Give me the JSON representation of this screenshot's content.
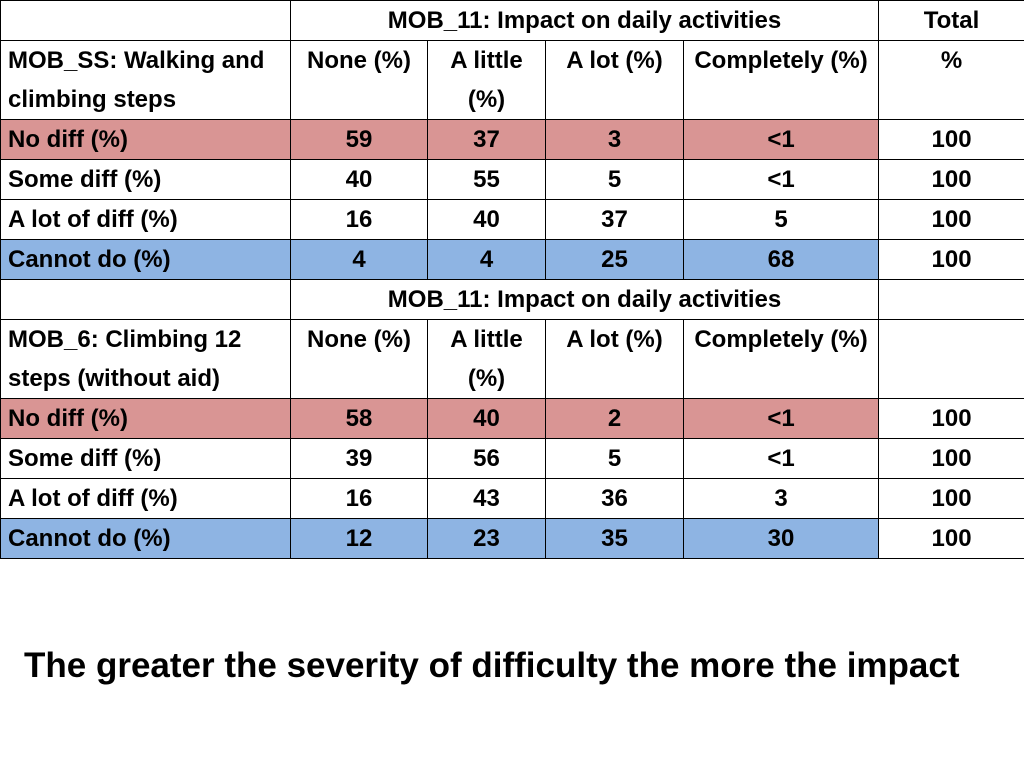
{
  "table1": {
    "title": "MOB_11: Impact on daily activities",
    "total_header": "Total",
    "row_header": "MOB_SS: Walking and climbing steps",
    "columns": [
      "None (%)",
      "A little (%)",
      "A lot (%)",
      "Completely (%)",
      "%"
    ],
    "rows": [
      {
        "label": "No diff (%)",
        "none": "59",
        "little": "37",
        "lot": "3",
        "completely": "<1",
        "total": "100"
      },
      {
        "label": "Some diff (%)",
        "none": "40",
        "little": "55",
        "lot": "5",
        "completely": "<1",
        "total": "100"
      },
      {
        "label": "A lot of diff (%)",
        "none": "16",
        "little": "40",
        "lot": "37",
        "completely": "5",
        "total": "100"
      },
      {
        "label": "Cannot do (%)",
        "none": "4",
        "little": "4",
        "lot": "25",
        "completely": "68",
        "total": "100"
      }
    ]
  },
  "table2": {
    "title": "MOB_11: Impact on daily activities",
    "row_header": "MOB_6: Climbing 12 steps (without aid)",
    "columns": [
      "None (%)",
      "A little (%)",
      "A lot (%)",
      "Completely (%)"
    ],
    "rows": [
      {
        "label": "No diff (%)",
        "none": "58",
        "little": "40",
        "lot": "2",
        "completely": "<1",
        "total": "100"
      },
      {
        "label": "Some diff (%)",
        "none": "39",
        "little": "56",
        "lot": "5",
        "completely": "<1",
        "total": "100"
      },
      {
        "label": "A lot of diff (%)",
        "none": "16",
        "little": "43",
        "lot": "36",
        "completely": "3",
        "total": "100"
      },
      {
        "label": "Cannot do (%)",
        "none": "12",
        "little": "23",
        "lot": "35",
        "completely": "30",
        "total": "100"
      }
    ]
  },
  "colors": {
    "no_diff_highlight": "#d99594",
    "cannot_do_highlight": "#8eb4e3"
  },
  "caption": "The greater the severity of difficulty the more the impact"
}
